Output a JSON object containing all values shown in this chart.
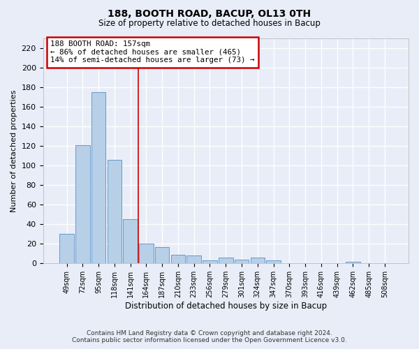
{
  "title": "188, BOOTH ROAD, BACUP, OL13 0TH",
  "subtitle": "Size of property relative to detached houses in Bacup",
  "xlabel": "Distribution of detached houses by size in Bacup",
  "ylabel": "Number of detached properties",
  "categories": [
    "49sqm",
    "72sqm",
    "95sqm",
    "118sqm",
    "141sqm",
    "164sqm",
    "187sqm",
    "210sqm",
    "233sqm",
    "256sqm",
    "279sqm",
    "301sqm",
    "324sqm",
    "347sqm",
    "370sqm",
    "393sqm",
    "416sqm",
    "439sqm",
    "462sqm",
    "485sqm",
    "508sqm"
  ],
  "values": [
    30,
    121,
    175,
    106,
    45,
    20,
    17,
    9,
    8,
    3,
    6,
    4,
    6,
    3,
    0,
    0,
    0,
    0,
    2,
    0,
    0
  ],
  "bar_color": "#b8cfe8",
  "bar_edge_color": "#6699cc",
  "annotation_text_line1": "188 BOOTH ROAD: 157sqm",
  "annotation_text_line2": "← 86% of detached houses are smaller (465)",
  "annotation_text_line3": "14% of semi-detached houses are larger (73) →",
  "red_line_x": 4.5,
  "ylim": [
    0,
    230
  ],
  "yticks": [
    0,
    20,
    40,
    60,
    80,
    100,
    120,
    140,
    160,
    180,
    200,
    220
  ],
  "footnote1": "Contains HM Land Registry data © Crown copyright and database right 2024.",
  "footnote2": "Contains public sector information licensed under the Open Government Licence v3.0.",
  "bg_color": "#e8edf8",
  "plot_bg_color": "#e8edf8",
  "grid_color": "#ffffff",
  "annotation_box_color": "#ffffff",
  "annotation_box_edge_color": "#cc0000",
  "red_line_color": "#cc0000",
  "title_fontsize": 10,
  "subtitle_fontsize": 8.5
}
